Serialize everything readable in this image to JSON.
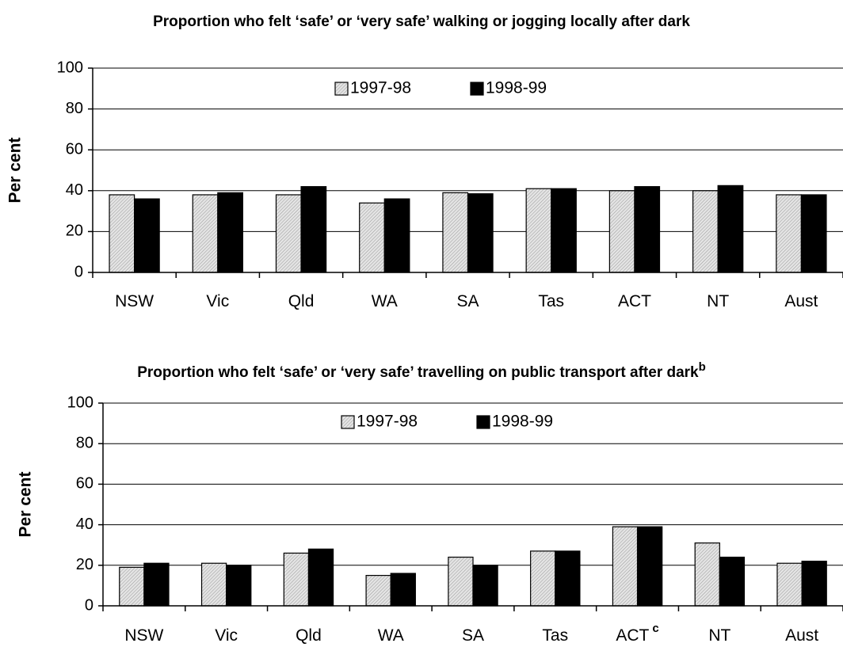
{
  "chart_data": [
    {
      "type": "bar",
      "title": "Proportion who felt ‘safe’ or ‘very safe’ walking or jogging locally after dark",
      "ylabel": "Per cent",
      "categories": [
        "NSW",
        "Vic",
        "Qld",
        "WA",
        "SA",
        "Tas",
        "ACT",
        "NT",
        "Aust"
      ],
      "series": [
        {
          "name": "1997-98",
          "color": "#cccccc",
          "values": [
            38,
            38,
            38,
            34,
            39,
            41,
            40,
            40,
            38
          ]
        },
        {
          "name": "1998-99",
          "color": "#000000",
          "values": [
            36,
            39,
            42,
            36,
            38.5,
            41,
            42,
            42.5,
            38
          ]
        }
      ],
      "ylim": [
        0,
        100
      ],
      "yticks": [
        0,
        20,
        40,
        60,
        80,
        100
      ],
      "grid": true
    },
    {
      "type": "bar",
      "title": "Proportion who felt ‘safe’ or ‘very safe’ travelling on public transport after dark",
      "title_note": "b",
      "ylabel": "Per cent",
      "categories": [
        "NSW",
        "Vic",
        "Qld",
        "WA",
        "SA",
        "Tas",
        "ACT",
        "NT",
        "Aust"
      ],
      "category_notes": [
        null,
        null,
        null,
        null,
        null,
        null,
        "c",
        null,
        null
      ],
      "series": [
        {
          "name": "1997-98",
          "color": "#cccccc",
          "values": [
            19,
            21,
            26,
            15,
            24,
            27,
            39,
            31,
            21
          ]
        },
        {
          "name": "1998-99",
          "color": "#000000",
          "values": [
            21,
            20,
            28,
            16,
            20,
            27,
            39,
            24,
            22
          ]
        }
      ],
      "ylim": [
        0,
        100
      ],
      "yticks": [
        0,
        20,
        40,
        60,
        80,
        100
      ],
      "grid": true
    }
  ]
}
